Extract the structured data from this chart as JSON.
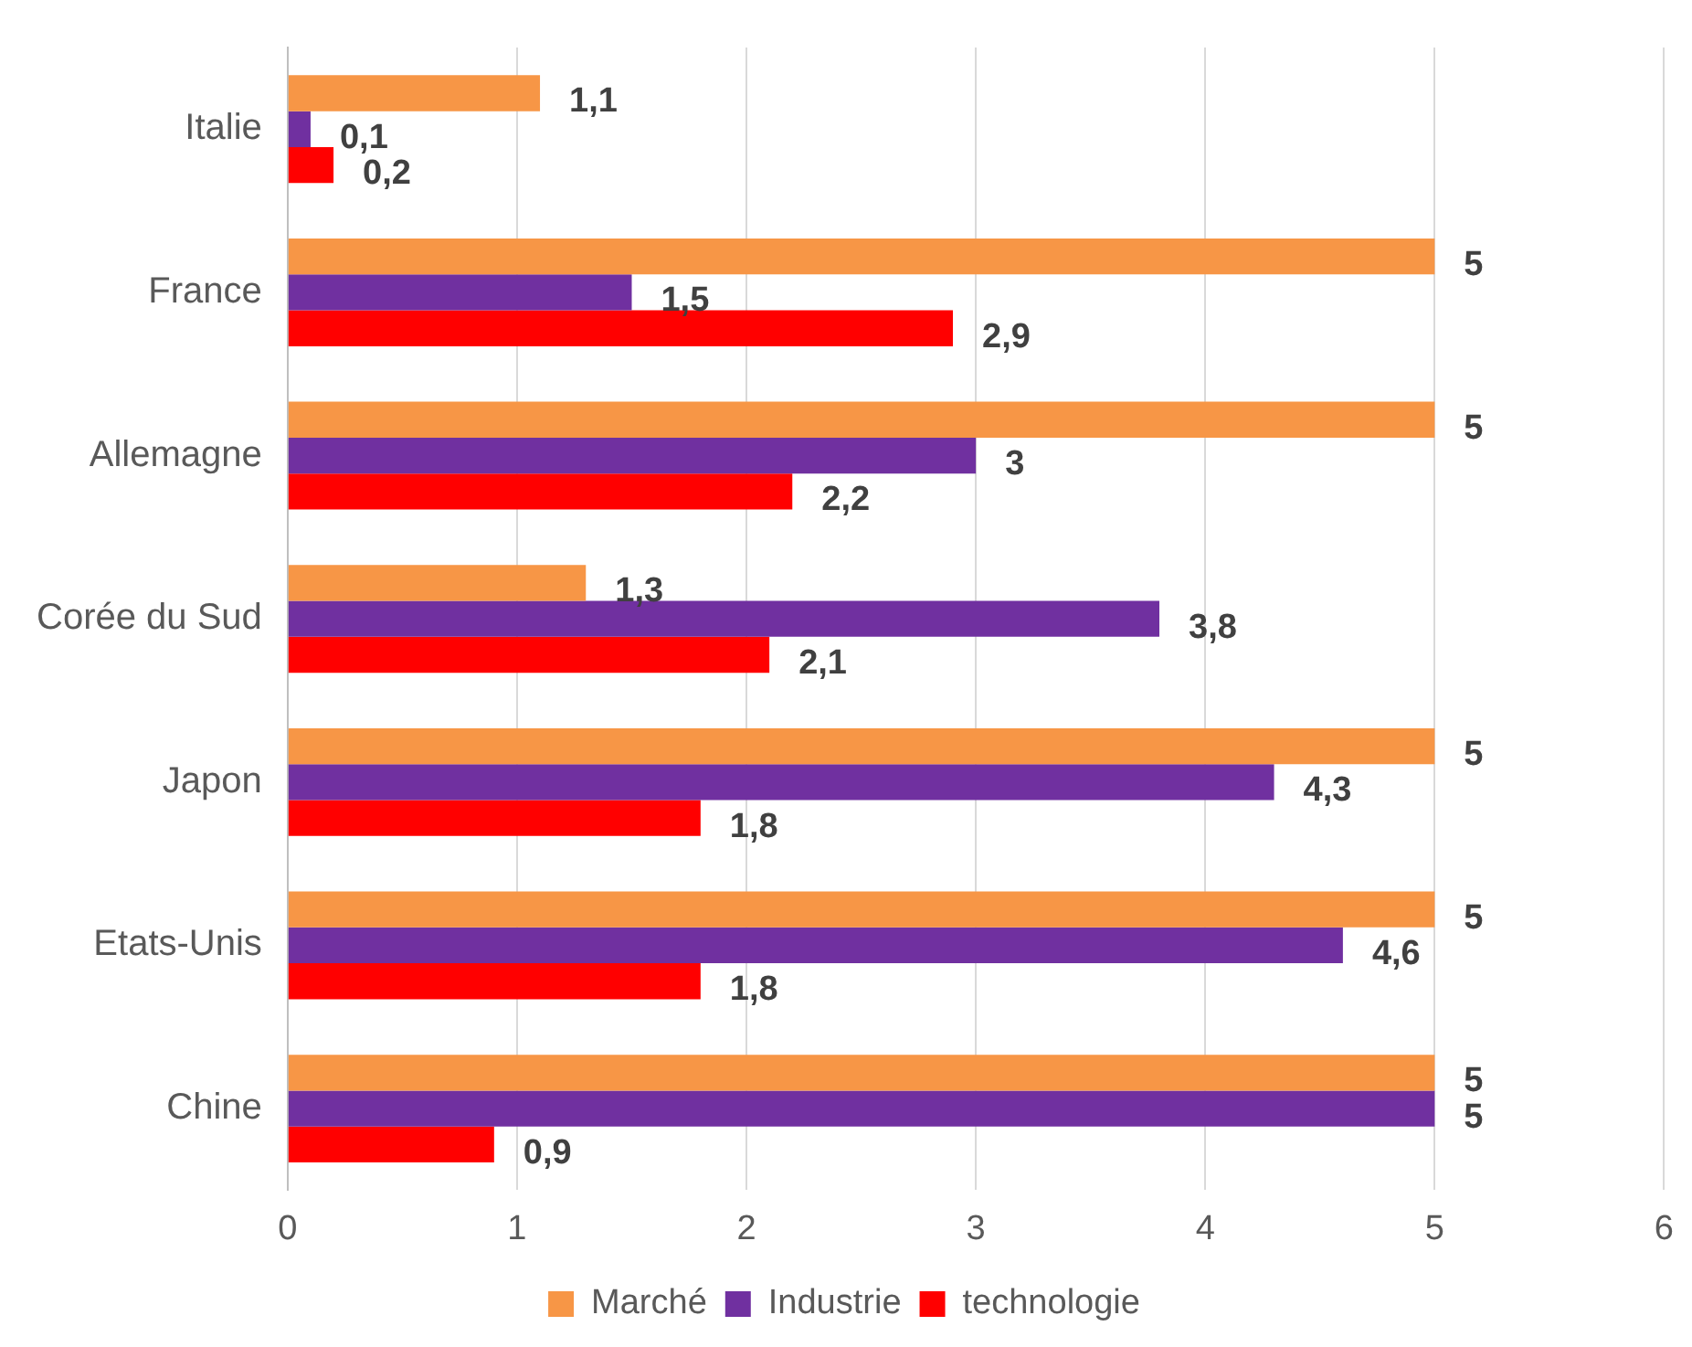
{
  "chart_data": {
    "type": "bar",
    "orientation": "horizontal",
    "categories": [
      "Italie",
      "France",
      "Allemagne",
      "Corée du Sud",
      "Japon",
      "Etats-Unis",
      "Chine"
    ],
    "series": [
      {
        "name": "Marché",
        "color": "#f79646",
        "values": [
          1.1,
          5,
          5,
          1.3,
          5,
          5,
          5
        ],
        "value_labels": [
          "1,1",
          "5",
          "5",
          "1,3",
          "5",
          "5",
          "5"
        ]
      },
      {
        "name": "Industrie",
        "color": "#7030a0",
        "values": [
          0.1,
          1.5,
          3,
          3.8,
          4.3,
          4.6,
          5
        ],
        "value_labels": [
          "0,1",
          "1,5",
          "3",
          "3,8",
          "4,3",
          "4,6",
          "5"
        ]
      },
      {
        "name": "technologie",
        "color": "#ff0000",
        "values": [
          0.2,
          2.9,
          2.2,
          2.1,
          1.8,
          1.8,
          0.9
        ],
        "value_labels": [
          "0,2",
          "2,9",
          "2,2",
          "2,1",
          "1,8",
          "1,8",
          "0,9"
        ]
      }
    ],
    "xlim": [
      0,
      6
    ],
    "xticks": [
      0,
      1,
      2,
      3,
      4,
      5,
      6
    ],
    "grid": "x",
    "legend": "bottom"
  }
}
